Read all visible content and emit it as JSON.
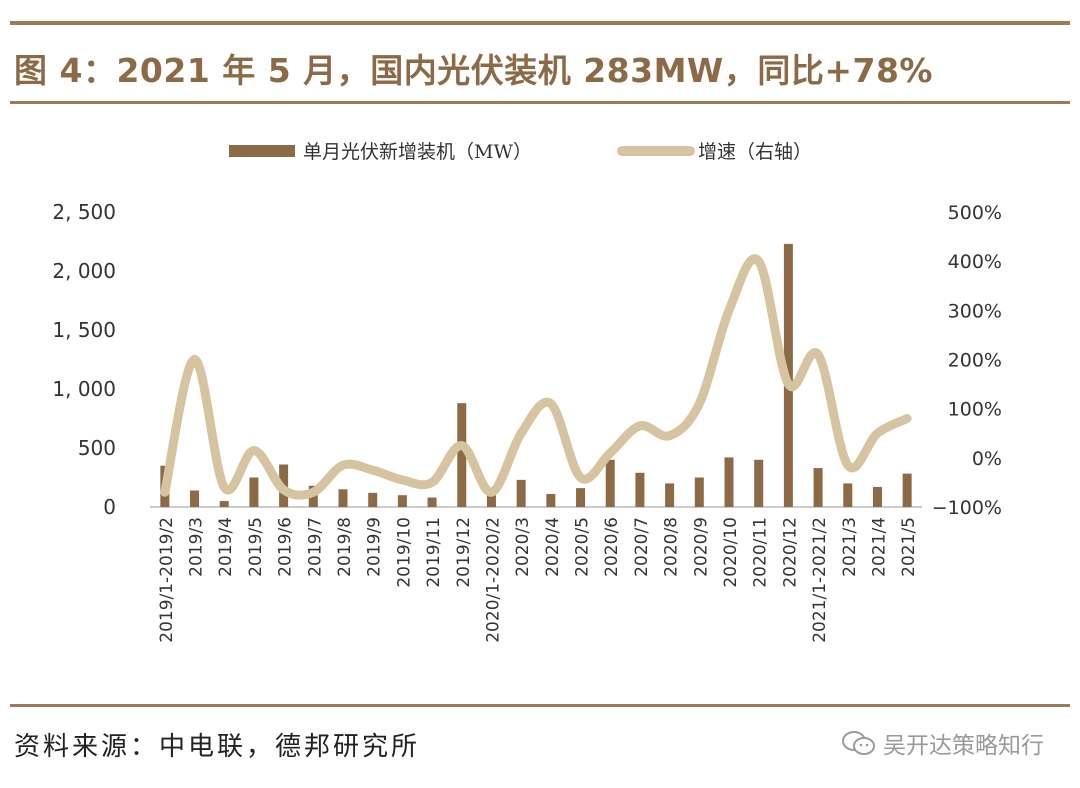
{
  "title": "图 4：2021 年 5 月，国内光伏装机 283MW，同比+78%",
  "source": "资料来源：中电联，德邦研究所",
  "watermark": "吴开达策略知行",
  "colors": {
    "bar": "#8c6a46",
    "line": "#d6c4a0",
    "rule": "#9c7a56"
  },
  "chart_data": {
    "type": "bar+line",
    "categories": [
      "2019/1-2019/2",
      "2019/3",
      "2019/4",
      "2019/5",
      "2019/6",
      "2019/7",
      "2019/8",
      "2019/9",
      "2019/10",
      "2019/11",
      "2019/12",
      "2020/1-2020/2",
      "2020/3",
      "2020/4",
      "2020/5",
      "2020/6",
      "2020/7",
      "2020/8",
      "2020/9",
      "2020/10",
      "2020/11",
      "2020/12",
      "2021/1-2021/2",
      "2021/3",
      "2021/4",
      "2021/5"
    ],
    "series": [
      {
        "name": "单月光伏新增装机（MW）",
        "axis": "left",
        "type": "bar",
        "values": [
          350,
          140,
          50,
          250,
          360,
          180,
          150,
          120,
          100,
          80,
          880,
          100,
          230,
          110,
          160,
          400,
          290,
          200,
          250,
          420,
          400,
          2230,
          330,
          200,
          170,
          283
        ]
      },
      {
        "name": "增速（右轴）",
        "axis": "right",
        "type": "line",
        "unit": "%",
        "values": [
          -70,
          200,
          -60,
          15,
          -65,
          -70,
          -15,
          -25,
          -45,
          -50,
          25,
          -70,
          50,
          110,
          -40,
          10,
          65,
          45,
          110,
          300,
          400,
          150,
          210,
          -15,
          50,
          80
        ]
      }
    ],
    "y_left": {
      "min": 0,
      "max": 2500,
      "ticks": [
        0,
        500,
        1000,
        1500,
        2000,
        2500
      ],
      "tick_labels": [
        "0",
        "500",
        "1, 000",
        "1, 500",
        "2, 000",
        "2, 500"
      ]
    },
    "y_right": {
      "min": -100,
      "max": 500,
      "ticks": [
        -100,
        0,
        100,
        200,
        300,
        400,
        500
      ],
      "tick_labels": [
        "−100%",
        "0%",
        "100%",
        "200%",
        "300%",
        "400%",
        "500%"
      ]
    },
    "legend": [
      "单月光伏新增装机（MW）",
      "增速（右轴）"
    ],
    "legend_position": "top-center",
    "grid": false
  }
}
